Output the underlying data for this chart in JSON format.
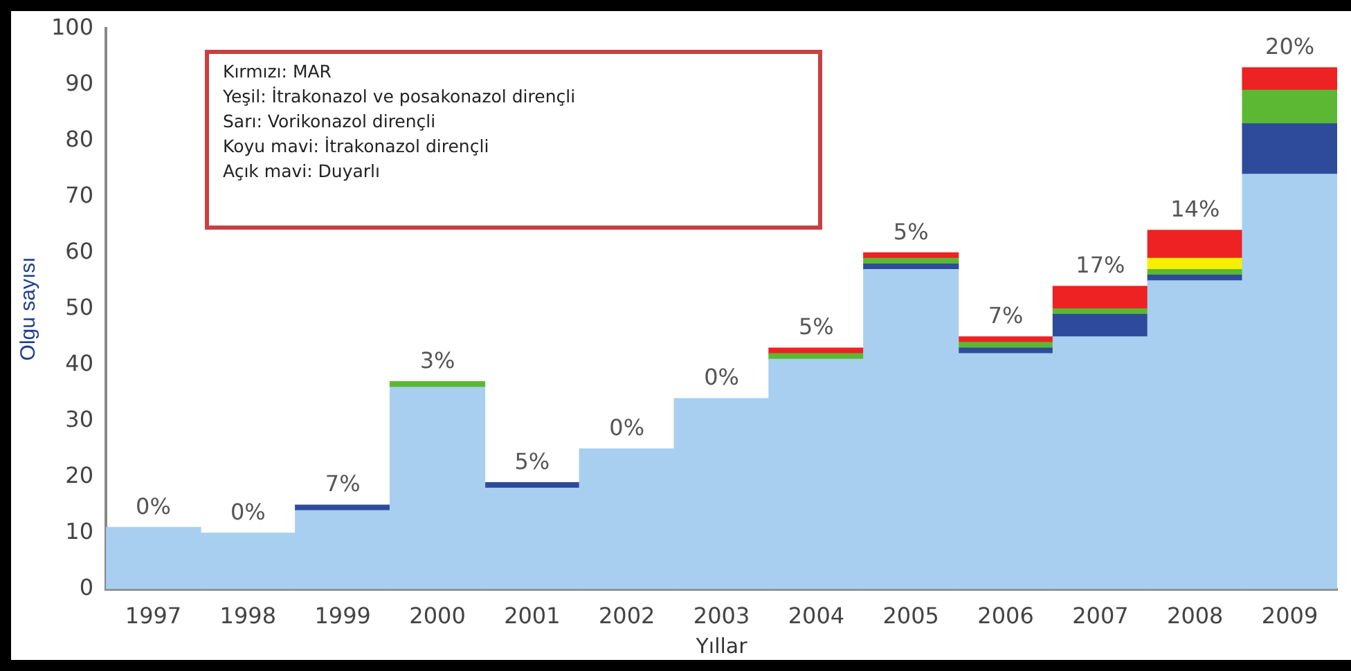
{
  "chart_data": {
    "type": "bar",
    "stacked": true,
    "xlabel": "Yıllar",
    "ylabel": "Olgu sayısı",
    "categories": [
      "1997",
      "1998",
      "1999",
      "2000",
      "2001",
      "2002",
      "2003",
      "2004",
      "2005",
      "2006",
      "2007",
      "2008",
      "2009"
    ],
    "series": [
      {
        "color": "#a8cff0",
        "values": [
          11,
          10,
          14,
          36,
          18,
          25,
          34,
          41,
          57,
          42,
          45,
          55,
          74
        ]
      },
      {
        "color": "#2e4b9b",
        "values": [
          null,
          null,
          1,
          null,
          1,
          null,
          null,
          null,
          1,
          1,
          4,
          1,
          9
        ]
      },
      {
        "color": "#5cb833",
        "values": [
          null,
          null,
          null,
          1,
          null,
          null,
          null,
          1,
          1,
          1,
          1,
          1,
          6
        ]
      },
      {
        "color": "#f5f000",
        "values": [
          null,
          null,
          null,
          null,
          null,
          null,
          null,
          null,
          null,
          null,
          null,
          2,
          null
        ]
      },
      {
        "color": "#ee2222",
        "values": [
          null,
          null,
          null,
          null,
          null,
          null,
          null,
          1,
          1,
          1,
          4,
          5,
          4
        ]
      }
    ],
    "ylim": [
      0,
      100
    ],
    "yticks": [
      0,
      10,
      20,
      30,
      40,
      50,
      60,
      70,
      80,
      90,
      100
    ],
    "grid": false,
    "legend": false,
    "annotations": [
      "Kırmızı: MAR",
      "Yeşil: İtrakonazol ve posakonazol dirençli",
      "Sarı: Vorikonazol dirençli",
      "Koyu mavi: İtrakonazol dirençli",
      "Açık mavi: Duyarlı",
      {
        "text": "0%",
        "x": "1997",
        "y": 11
      },
      {
        "text": "0%",
        "x": "1998",
        "y": 10
      },
      {
        "text": "7%",
        "x": "1999",
        "y": 15
      },
      {
        "text": "3%",
        "x": "2000",
        "y": 37
      },
      {
        "text": "5%",
        "x": "2001",
        "y": 19
      },
      {
        "text": "0%",
        "x": "2002",
        "y": 25
      },
      {
        "text": "0%",
        "x": "2003",
        "y": 34
      },
      {
        "text": "5%",
        "x": "2004",
        "y": 43
      },
      {
        "text": "5%",
        "x": "2005",
        "y": 60
      },
      {
        "text": "7%",
        "x": "2006",
        "y": 45
      },
      {
        "text": "17%",
        "x": "2007",
        "y": 54
      },
      {
        "text": "14%",
        "x": "2008",
        "y": 64
      },
      {
        "text": "20%",
        "x": "2009",
        "y": 93
      }
    ]
  }
}
